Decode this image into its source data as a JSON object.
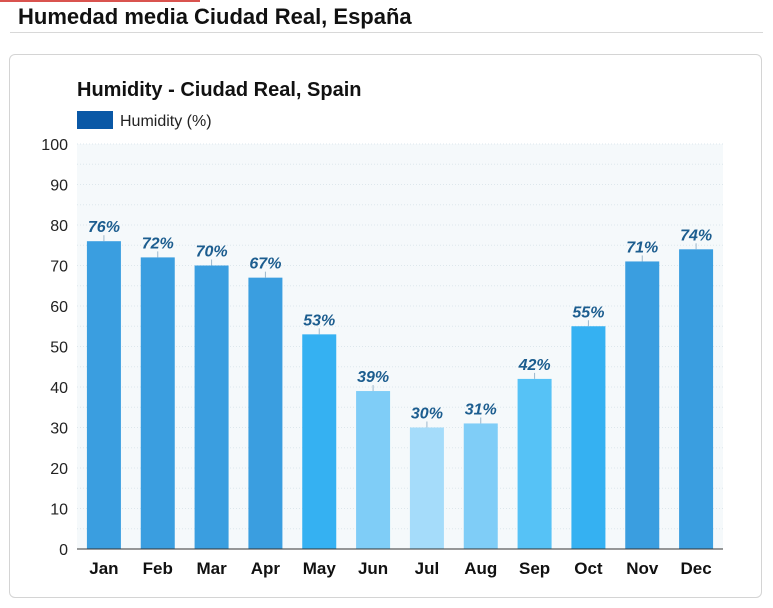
{
  "page": {
    "title": "Humedad media Ciudad Real, España"
  },
  "chart_data": {
    "type": "bar",
    "title": "Humidity - Ciudad Real, Spain",
    "legend": {
      "label": "Humidity (%)",
      "color": "#0a58a6",
      "placement": "top-left"
    },
    "categories": [
      "Jan",
      "Feb",
      "Mar",
      "Apr",
      "May",
      "Jun",
      "Jul",
      "Aug",
      "Sep",
      "Oct",
      "Nov",
      "Dec"
    ],
    "series": [
      {
        "name": "Humidity (%)",
        "values": [
          76,
          72,
          70,
          67,
          53,
          39,
          30,
          31,
          42,
          55,
          71,
          74
        ],
        "data_labels": [
          "76%",
          "72%",
          "70%",
          "67%",
          "53%",
          "39%",
          "30%",
          "31%",
          "42%",
          "55%",
          "71%",
          "74%"
        ],
        "colors": [
          "#3a9ee0",
          "#3a9ee0",
          "#3a9ee0",
          "#3a9ee0",
          "#35b1f2",
          "#7fcdf7",
          "#a5dcfa",
          "#7fcdf7",
          "#56c2f6",
          "#35b1f2",
          "#3a9ee0",
          "#3a9ee0"
        ]
      }
    ],
    "y_ticks": [
      "0",
      "10",
      "20",
      "30",
      "40",
      "50",
      "60",
      "70",
      "80",
      "90",
      "100"
    ],
    "ylim": [
      0,
      100
    ],
    "xlabel": "",
    "ylabel": "",
    "grid": true
  }
}
